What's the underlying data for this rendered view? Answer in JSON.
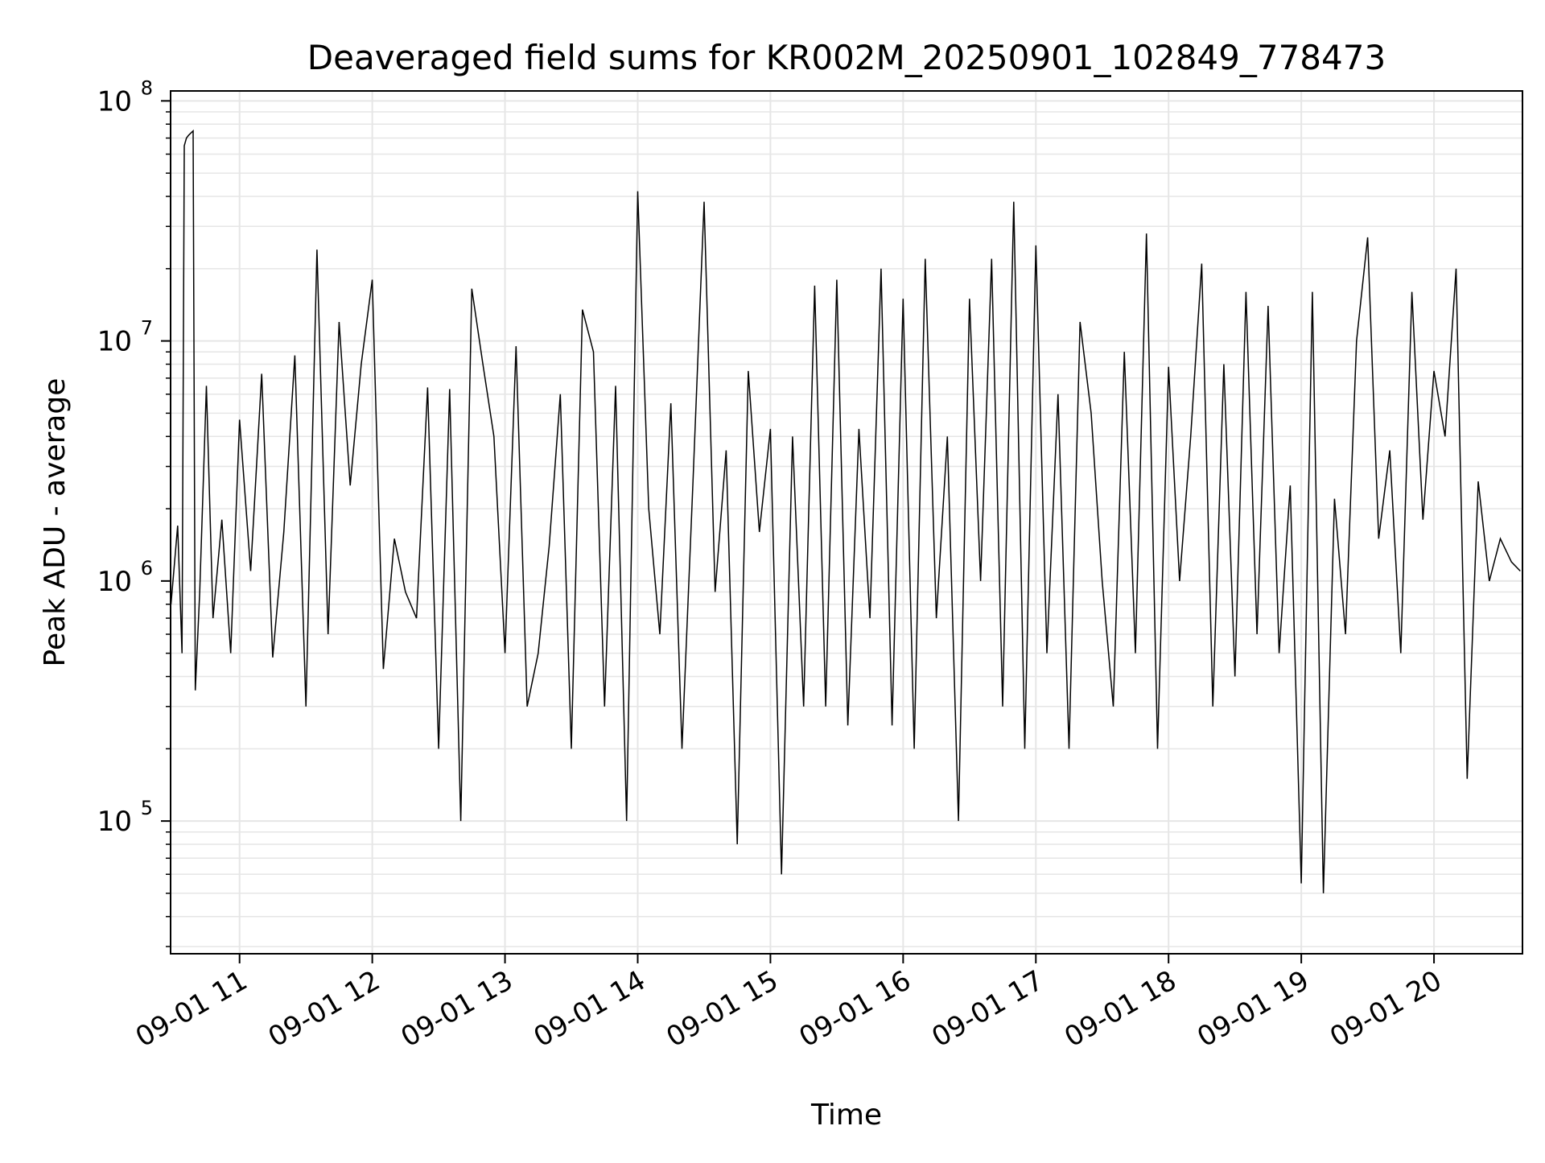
{
  "chart_data": {
    "type": "line",
    "title": "Deaveraged field sums for KR002M_20250901_102849_778473",
    "xlabel": "Time",
    "ylabel": "Peak ADU - average",
    "yscale": "log",
    "ylim": [
      28000,
      110000000
    ],
    "xlim": [
      "2025-09-01 10:28:49",
      "2025-09-01 20:40:00"
    ],
    "grid": true,
    "legend": "none",
    "colors": {
      "line": "#000000",
      "grid": "#e6e6e6",
      "axes": "#000000",
      "background": "#ffffff"
    },
    "x_ticks": [
      {
        "value": "2025-09-01 11:00",
        "label": "09-01 11"
      },
      {
        "value": "2025-09-01 12:00",
        "label": "09-01 12"
      },
      {
        "value": "2025-09-01 13:00",
        "label": "09-01 13"
      },
      {
        "value": "2025-09-01 14:00",
        "label": "09-01 14"
      },
      {
        "value": "2025-09-01 15:00",
        "label": "09-01 15"
      },
      {
        "value": "2025-09-01 16:00",
        "label": "09-01 16"
      },
      {
        "value": "2025-09-01 17:00",
        "label": "09-01 17"
      },
      {
        "value": "2025-09-01 18:00",
        "label": "09-01 18"
      },
      {
        "value": "2025-09-01 19:00",
        "label": "09-01 19"
      },
      {
        "value": "2025-09-01 20:00",
        "label": "09-01 20"
      }
    ],
    "y_ticks": [
      {
        "value": 100000,
        "base": "10",
        "exp": "5"
      },
      {
        "value": 1000000,
        "base": "10",
        "exp": "6"
      },
      {
        "value": 10000000,
        "base": "10",
        "exp": "7"
      },
      {
        "value": 100000000,
        "base": "10",
        "exp": "8"
      }
    ],
    "series": [
      {
        "x": [
          "2025-09-01 10:29",
          "2025-09-01 10:32",
          "2025-09-01 10:34",
          "2025-09-01 10:35",
          "2025-09-01 10:36",
          "2025-09-01 10:37",
          "2025-09-01 10:39",
          "2025-09-01 10:40",
          "2025-09-01 10:42",
          "2025-09-01 10:45",
          "2025-09-01 10:48",
          "2025-09-01 10:52",
          "2025-09-01 10:56",
          "2025-09-01 11:00",
          "2025-09-01 11:05",
          "2025-09-01 11:10",
          "2025-09-01 11:15",
          "2025-09-01 11:20",
          "2025-09-01 11:25",
          "2025-09-01 11:30",
          "2025-09-01 11:35",
          "2025-09-01 11:40",
          "2025-09-01 11:45",
          "2025-09-01 11:50",
          "2025-09-01 11:55",
          "2025-09-01 12:00",
          "2025-09-01 12:05",
          "2025-09-01 12:10",
          "2025-09-01 12:15",
          "2025-09-01 12:20",
          "2025-09-01 12:25",
          "2025-09-01 12:30",
          "2025-09-01 12:35",
          "2025-09-01 12:40",
          "2025-09-01 12:45",
          "2025-09-01 12:50",
          "2025-09-01 12:55",
          "2025-09-01 13:00",
          "2025-09-01 13:05",
          "2025-09-01 13:10",
          "2025-09-01 13:15",
          "2025-09-01 13:20",
          "2025-09-01 13:25",
          "2025-09-01 13:30",
          "2025-09-01 13:35",
          "2025-09-01 13:40",
          "2025-09-01 13:45",
          "2025-09-01 13:50",
          "2025-09-01 13:55",
          "2025-09-01 14:00",
          "2025-09-01 14:05",
          "2025-09-01 14:10",
          "2025-09-01 14:15",
          "2025-09-01 14:20",
          "2025-09-01 14:25",
          "2025-09-01 14:30",
          "2025-09-01 14:35",
          "2025-09-01 14:40",
          "2025-09-01 14:45",
          "2025-09-01 14:50",
          "2025-09-01 14:55",
          "2025-09-01 15:00",
          "2025-09-01 15:05",
          "2025-09-01 15:10",
          "2025-09-01 15:15",
          "2025-09-01 15:20",
          "2025-09-01 15:25",
          "2025-09-01 15:30",
          "2025-09-01 15:35",
          "2025-09-01 15:40",
          "2025-09-01 15:45",
          "2025-09-01 15:50",
          "2025-09-01 15:55",
          "2025-09-01 16:00",
          "2025-09-01 16:05",
          "2025-09-01 16:10",
          "2025-09-01 16:15",
          "2025-09-01 16:20",
          "2025-09-01 16:25",
          "2025-09-01 16:30",
          "2025-09-01 16:35",
          "2025-09-01 16:40",
          "2025-09-01 16:45",
          "2025-09-01 16:50",
          "2025-09-01 16:55",
          "2025-09-01 17:00",
          "2025-09-01 17:05",
          "2025-09-01 17:10",
          "2025-09-01 17:15",
          "2025-09-01 17:20",
          "2025-09-01 17:25",
          "2025-09-01 17:30",
          "2025-09-01 17:35",
          "2025-09-01 17:40",
          "2025-09-01 17:45",
          "2025-09-01 17:50",
          "2025-09-01 17:55",
          "2025-09-01 18:00",
          "2025-09-01 18:05",
          "2025-09-01 18:10",
          "2025-09-01 18:15",
          "2025-09-01 18:20",
          "2025-09-01 18:25",
          "2025-09-01 18:30",
          "2025-09-01 18:35",
          "2025-09-01 18:40",
          "2025-09-01 18:45",
          "2025-09-01 18:50",
          "2025-09-01 18:55",
          "2025-09-01 19:00",
          "2025-09-01 19:05",
          "2025-09-01 19:10",
          "2025-09-01 19:15",
          "2025-09-01 19:20",
          "2025-09-01 19:25",
          "2025-09-01 19:30",
          "2025-09-01 19:35",
          "2025-09-01 19:40",
          "2025-09-01 19:45",
          "2025-09-01 19:50",
          "2025-09-01 19:55",
          "2025-09-01 20:00",
          "2025-09-01 20:05",
          "2025-09-01 20:10",
          "2025-09-01 20:15",
          "2025-09-01 20:20",
          "2025-09-01 20:25",
          "2025-09-01 20:30",
          "2025-09-01 20:35",
          "2025-09-01 20:39"
        ],
        "y": [
          800000,
          1700000,
          500000,
          65000000,
          70000000,
          72000000,
          75000000,
          350000,
          900000,
          6500000,
          700000,
          1800000,
          500000,
          4700000,
          1100000,
          7300000,
          480000,
          1600000,
          8700000,
          300000,
          24000000,
          600000,
          12000000,
          2500000,
          8000000,
          18000000,
          430000,
          1500000,
          900000,
          700000,
          6400000,
          200000,
          6300000,
          100000,
          16500000,
          8000000,
          4000000,
          500000,
          9500000,
          300000,
          500000,
          1400000,
          6000000,
          200000,
          13500000,
          9000000,
          300000,
          6500000,
          100000,
          42000000,
          2000000,
          600000,
          5500000,
          200000,
          2600000,
          38000000,
          900000,
          3500000,
          80000,
          7500000,
          1600000,
          4300000,
          60000,
          4000000,
          300000,
          17000000,
          300000,
          18000000,
          250000,
          4300000,
          700000,
          20000000,
          250000,
          15000000,
          200000,
          22000000,
          700000,
          4000000,
          100000,
          15000000,
          1000000,
          22000000,
          300000,
          38000000,
          200000,
          25000000,
          500000,
          6000000,
          200000,
          12000000,
          5000000,
          1000000,
          300000,
          9000000,
          500000,
          28000000,
          200000,
          7800000,
          1000000,
          4000000,
          21000000,
          300000,
          8000000,
          400000,
          16000000,
          600000,
          14000000,
          500000,
          2500000,
          55000,
          16000000,
          50000,
          2200000,
          600000,
          10000000,
          27000000,
          1500000,
          3500000,
          500000,
          16000000,
          1800000,
          7500000,
          4000000,
          20000000,
          150000,
          2600000,
          1000000,
          1500000,
          1200000,
          1100000
        ]
      }
    ]
  }
}
